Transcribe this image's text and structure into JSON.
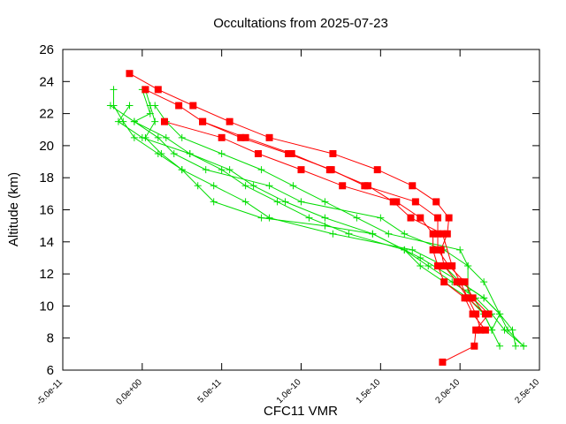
{
  "chart_data": {
    "type": "line",
    "title": "Occultations from 2025-07-23",
    "xlabel": "CFC11 VMR",
    "ylabel": "Altitude (km)",
    "xlim": [
      -5e-11,
      2.5e-10
    ],
    "ylim": [
      6,
      26
    ],
    "x_tick_labels": [
      "-5.0e-11",
      "0.0e+00",
      "5.0e-11",
      "1.0e-10",
      "1.5e-10",
      "2.0e-10",
      "2.5e-10"
    ],
    "x_tick_values": [
      -5e-11,
      0,
      5e-11,
      1e-10,
      1.5e-10,
      2e-10,
      2.5e-10
    ],
    "y_tick_labels": [
      "6",
      "8",
      "10",
      "12",
      "14",
      "16",
      "18",
      "20",
      "22",
      "24",
      "26"
    ],
    "y_tick_values": [
      6,
      8,
      10,
      12,
      14,
      16,
      18,
      20,
      22,
      24,
      26
    ],
    "grid": false,
    "series": [
      {
        "color": "#ff0000",
        "marker": "square",
        "points": [
          [
            -8e-12,
            24.5
          ],
          [
            1e-11,
            23.5
          ],
          [
            3.2e-11,
            22.5
          ],
          [
            5.5e-11,
            21.5
          ],
          [
            8e-11,
            20.5
          ],
          [
            1.2e-10,
            19.5
          ],
          [
            1.48e-10,
            18.5
          ],
          [
            1.7e-10,
            17.5
          ],
          [
            1.85e-10,
            16.5
          ],
          [
            1.93e-10,
            15.5
          ],
          [
            1.92e-10,
            14.5
          ],
          [
            1.88e-10,
            13.5
          ],
          [
            1.9e-10,
            12.5
          ],
          [
            1.98e-10,
            11.5
          ],
          [
            2.05e-10,
            10.5
          ],
          [
            2.1e-10,
            9.5
          ],
          [
            2.13e-10,
            8.5
          ]
        ]
      },
      {
        "color": "#ff0000",
        "marker": "square",
        "points": [
          [
            2e-12,
            23.5
          ],
          [
            2.3e-11,
            22.5
          ],
          [
            3.8e-11,
            21.5
          ],
          [
            6.2e-11,
            20.5
          ],
          [
            9.2e-11,
            19.5
          ],
          [
            1.19e-10,
            18.5
          ],
          [
            1.4e-10,
            17.5
          ],
          [
            1.72e-10,
            16.5
          ],
          [
            1.86e-10,
            15.5
          ],
          [
            1.86e-10,
            14.5
          ],
          [
            1.86e-10,
            13.5
          ],
          [
            1.93e-10,
            12.5
          ],
          [
            2.03e-10,
            11.5
          ],
          [
            2.08e-10,
            10.5
          ],
          [
            2.18e-10,
            9.5
          ],
          [
            2.1e-10,
            8.5
          ],
          [
            2.09e-10,
            7.5
          ],
          [
            1.89e-10,
            6.5
          ]
        ]
      },
      {
        "color": "#ff0000",
        "marker": "square",
        "points": [
          [
            1.4e-11,
            21.5
          ],
          [
            5e-11,
            20.5
          ],
          [
            7.3e-11,
            19.5
          ],
          [
            1e-10,
            18.5
          ],
          [
            1.26e-10,
            17.5
          ],
          [
            1.6e-10,
            16.5
          ],
          [
            1.75e-10,
            15.5
          ],
          [
            1.83e-10,
            14.5
          ],
          [
            1.83e-10,
            13.5
          ],
          [
            1.86e-10,
            12.5
          ],
          [
            1.9e-10,
            11.5
          ],
          [
            2.03e-10,
            10.5
          ],
          [
            2.08e-10,
            9.5
          ],
          [
            2.16e-10,
            8.5
          ]
        ]
      },
      {
        "color": "#ff0000",
        "marker": "square",
        "points": [
          [
            3.8e-11,
            21.5
          ],
          [
            6.5e-11,
            20.5
          ],
          [
            9.4e-11,
            19.5
          ],
          [
            1.18e-10,
            18.5
          ],
          [
            1.42e-10,
            17.5
          ],
          [
            1.58e-10,
            16.5
          ],
          [
            1.69e-10,
            15.5
          ],
          [
            1.89e-10,
            14.5
          ],
          [
            1.95e-10,
            12.5
          ],
          [
            2e-10,
            11.5
          ],
          [
            2.05e-10,
            10.5
          ],
          [
            2.16e-10,
            9.5
          ]
        ]
      },
      {
        "color": "#00dd00",
        "marker": "plus",
        "points": [
          [
            -1.8e-11,
            23.5
          ],
          [
            -1.8e-11,
            22.5
          ],
          [
            -1.2e-11,
            21.5
          ],
          [
            -5e-12,
            20.5
          ],
          [
            1e-11,
            19.5
          ],
          [
            2.5e-11,
            18.5
          ],
          [
            4.5e-11,
            17.5
          ],
          [
            6.5e-11,
            16.5
          ],
          [
            8e-11,
            15.5
          ],
          [
            1.2e-10,
            14.5
          ],
          [
            1.7e-10,
            13.5
          ],
          [
            1.9e-10,
            12.5
          ],
          [
            2e-10,
            11.5
          ],
          [
            2.15e-10,
            10.5
          ],
          [
            2.25e-10,
            9.5
          ],
          [
            2.33e-10,
            8.5
          ],
          [
            2.35e-10,
            7.5
          ]
        ]
      },
      {
        "color": "#00dd00",
        "marker": "plus",
        "points": [
          [
            -2e-11,
            22.5
          ],
          [
            -5e-12,
            21.5
          ],
          [
            1.5e-11,
            20.5
          ],
          [
            3e-11,
            19.5
          ],
          [
            5e-11,
            18.5
          ],
          [
            6.5e-11,
            17.5
          ],
          [
            8.5e-11,
            16.5
          ],
          [
            1.05e-10,
            15.5
          ],
          [
            1.3e-10,
            14.5
          ],
          [
            1.65e-10,
            13.5
          ],
          [
            1.8e-10,
            12.5
          ],
          [
            1.95e-10,
            11.5
          ],
          [
            2.1e-10,
            10.5
          ],
          [
            2.2e-10,
            9.5
          ],
          [
            2.28e-10,
            8.5
          ],
          [
            2.4e-10,
            7.5
          ]
        ]
      },
      {
        "color": "#00dd00",
        "marker": "plus",
        "points": [
          [
            2e-12,
            23.5
          ],
          [
            5e-12,
            22.5
          ],
          [
            8e-12,
            21.5
          ],
          [
            2e-12,
            20.5
          ],
          [
            1.2e-11,
            19.5
          ],
          [
            2.5e-11,
            18.5
          ],
          [
            3.5e-11,
            17.5
          ],
          [
            4.5e-11,
            16.5
          ],
          [
            7.5e-11,
            15.5
          ],
          [
            1.15e-10,
            15.0
          ],
          [
            1.45e-10,
            14.5
          ],
          [
            1.75e-10,
            13.0
          ],
          [
            2e-10,
            11.5
          ],
          [
            2.15e-10,
            10.5
          ],
          [
            2.25e-10,
            9.5
          ],
          [
            2.3e-10,
            8.5
          ],
          [
            2.4e-10,
            7.5
          ]
        ]
      },
      {
        "color": "#00dd00",
        "marker": "plus",
        "points": [
          [
            -8e-12,
            22.5
          ],
          [
            -1.5e-11,
            21.5
          ],
          [
            0.0,
            20.5
          ],
          [
            3e-11,
            19.5
          ],
          [
            5.5e-11,
            18.5
          ],
          [
            7e-11,
            17.5
          ],
          [
            9e-11,
            16.5
          ],
          [
            1.15e-10,
            15.5
          ],
          [
            1.45e-10,
            14.5
          ],
          [
            1.65e-10,
            13.5
          ],
          [
            1.75e-10,
            12.5
          ],
          [
            2.05e-10,
            10.5
          ],
          [
            2.15e-10,
            9.5
          ],
          [
            2.25e-10,
            7.5
          ]
        ]
      },
      {
        "color": "#00dd00",
        "marker": "plus",
        "points": [
          [
            8e-12,
            22.5
          ],
          [
            1.5e-11,
            21.5
          ],
          [
            2.5e-11,
            20.5
          ],
          [
            5e-11,
            19.5
          ],
          [
            7.5e-11,
            18.5
          ],
          [
            9.5e-11,
            17.5
          ],
          [
            1.15e-10,
            16.5
          ],
          [
            1.35e-10,
            15.5
          ],
          [
            1.55e-10,
            14.5
          ],
          [
            2e-10,
            13.5
          ],
          [
            2.05e-10,
            12.5
          ],
          [
            2.05e-10,
            11.0
          ],
          [
            2.15e-10,
            9.5
          ],
          [
            2.2e-10,
            8.5
          ]
        ]
      },
      {
        "color": "#00dd00",
        "marker": "plus",
        "points": [
          [
            0.0,
            23.5
          ],
          [
            5e-12,
            22.0
          ],
          [
            -5e-12,
            21.5
          ],
          [
            1e-11,
            20.5
          ],
          [
            2e-11,
            19.5
          ],
          [
            4e-11,
            18.5
          ],
          [
            8e-11,
            17.5
          ],
          [
            1e-10,
            16.5
          ],
          [
            1.5e-10,
            15.5
          ],
          [
            1.65e-10,
            14.5
          ],
          [
            1.9e-10,
            13.5
          ],
          [
            2.05e-10,
            12.5
          ],
          [
            2.15e-10,
            11.5
          ],
          [
            2.25e-10,
            9.5
          ],
          [
            2.2e-10,
            8.5
          ]
        ]
      }
    ]
  }
}
